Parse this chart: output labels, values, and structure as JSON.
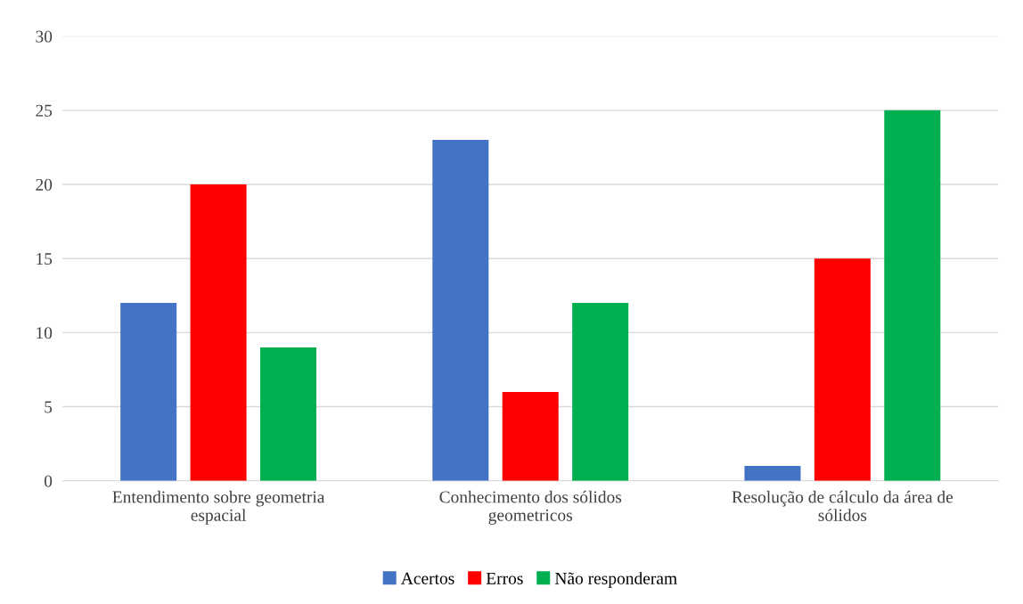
{
  "chart_data": {
    "type": "bar",
    "categories": [
      "Entendimento sobre geometria espacial",
      "Conhecimento dos sólidos geometricos",
      "Resolução de cálculo da área de sólidos"
    ],
    "series": [
      {
        "name": "Acertos",
        "color": "#4472c4",
        "values": [
          12,
          23,
          1
        ]
      },
      {
        "name": "Erros",
        "color": "#ff0000",
        "values": [
          20,
          6,
          15
        ]
      },
      {
        "name": "Não responderam",
        "color": "#00b050",
        "values": [
          9,
          12,
          25
        ]
      }
    ],
    "ylim": [
      0,
      30
    ],
    "yticks": [
      0,
      5,
      10,
      15,
      20,
      25,
      30
    ],
    "grid": "y",
    "legend": "bottom"
  }
}
